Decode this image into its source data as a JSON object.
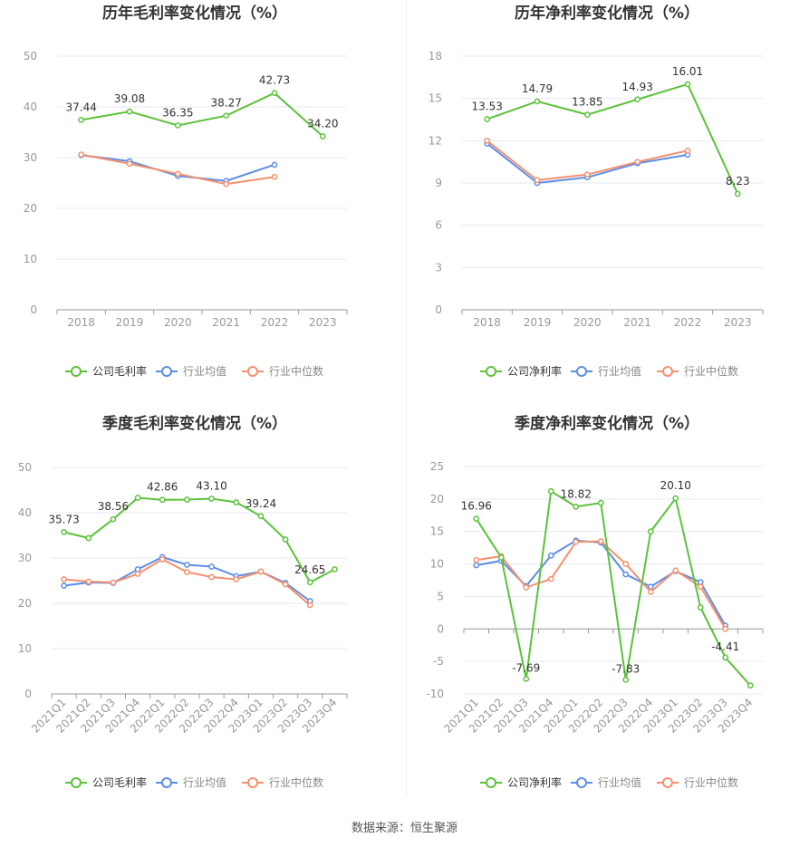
{
  "colors": {
    "company": "#5cc23a",
    "avg": "#5b8ee6",
    "median": "#f5906e",
    "grid": "#e6e9ef",
    "axis": "#999999",
    "text": "#333333"
  },
  "footer": "数据来源：恒生聚源",
  "chart_data": [
    {
      "type": "line",
      "title": "历年毛利率变化情况（%）",
      "categories": [
        "2018",
        "2019",
        "2020",
        "2021",
        "2022",
        "2023"
      ],
      "ylim": [
        0,
        50
      ],
      "yticks": [
        0,
        10,
        20,
        30,
        40,
        50
      ],
      "grid": true,
      "legend": "bottom",
      "series": [
        {
          "name": "公司毛利率",
          "values": [
            37.44,
            39.08,
            36.35,
            38.27,
            42.73,
            34.2
          ],
          "labels": [
            "37.44",
            "39.08",
            "36.35",
            "38.27",
            "42.73",
            "34.20"
          ]
        },
        {
          "name": "行业均值",
          "values": [
            30.5,
            29.3,
            26.4,
            25.4,
            28.6,
            null
          ]
        },
        {
          "name": "行业中位数",
          "values": [
            30.6,
            28.8,
            26.8,
            24.8,
            26.2,
            null
          ]
        }
      ]
    },
    {
      "type": "line",
      "title": "历年净利率变化情况（%）",
      "categories": [
        "2018",
        "2019",
        "2020",
        "2021",
        "2022",
        "2023"
      ],
      "ylim": [
        0,
        18
      ],
      "yticks": [
        0,
        3,
        6,
        9,
        12,
        15,
        18
      ],
      "grid": true,
      "legend": "bottom",
      "series": [
        {
          "name": "公司净利率",
          "values": [
            13.53,
            14.79,
            13.85,
            14.93,
            16.01,
            8.23
          ],
          "labels": [
            "13.53",
            "14.79",
            "13.85",
            "14.93",
            "16.01",
            "8.23"
          ]
        },
        {
          "name": "行业均值",
          "values": [
            11.8,
            9.0,
            9.4,
            10.4,
            11.0,
            null
          ]
        },
        {
          "name": "行业中位数",
          "values": [
            12.0,
            9.2,
            9.6,
            10.5,
            11.3,
            null
          ]
        }
      ]
    },
    {
      "type": "line",
      "title": "季度毛利率变化情况（%）",
      "categories": [
        "2021Q1",
        "2021Q2",
        "2021Q3",
        "2021Q4",
        "2022Q1",
        "2022Q2",
        "2022Q3",
        "2022Q4",
        "2023Q1",
        "2023Q2",
        "2023Q3",
        "2023Q4"
      ],
      "ylim": [
        0,
        50
      ],
      "yticks": [
        0,
        10,
        20,
        30,
        40,
        50
      ],
      "grid": true,
      "legend": "bottom",
      "series": [
        {
          "name": "公司毛利率",
          "values": [
            35.73,
            34.4,
            38.56,
            43.3,
            42.86,
            42.9,
            43.1,
            42.3,
            39.24,
            34.1,
            24.65,
            27.5
          ],
          "labels": [
            "35.73",
            "",
            "38.56",
            "",
            "42.86",
            "",
            "43.10",
            "",
            "39.24",
            "",
            "24.65",
            ""
          ]
        },
        {
          "name": "行业均值",
          "values": [
            23.9,
            24.6,
            24.5,
            27.5,
            30.2,
            28.5,
            28.1,
            26.0,
            27.0,
            24.5,
            20.5,
            null
          ]
        },
        {
          "name": "行业中位数",
          "values": [
            25.3,
            24.8,
            24.6,
            26.5,
            29.7,
            26.9,
            25.8,
            25.3,
            27.0,
            24.2,
            19.6,
            null
          ]
        }
      ]
    },
    {
      "type": "line",
      "title": "季度净利率变化情况（%）",
      "categories": [
        "2021Q1",
        "2021Q2",
        "2021Q3",
        "2021Q4",
        "2022Q1",
        "2022Q2",
        "2022Q3",
        "2022Q4",
        "2023Q1",
        "2023Q2",
        "2023Q3",
        "2023Q4"
      ],
      "ylim": [
        -10,
        25
      ],
      "yticks": [
        -10,
        -5,
        0,
        5,
        10,
        15,
        20,
        25
      ],
      "grid": true,
      "legend": "bottom",
      "series": [
        {
          "name": "公司净利率",
          "values": [
            16.96,
            11.0,
            -7.69,
            21.2,
            18.82,
            19.4,
            -7.83,
            15.0,
            20.1,
            3.3,
            -4.41,
            -8.7
          ],
          "labels": [
            "16.96",
            "",
            "-7.69",
            "",
            "18.82",
            "",
            "-7.83",
            "",
            "20.10",
            "",
            "-4.41",
            ""
          ]
        },
        {
          "name": "行业均值",
          "values": [
            9.8,
            10.5,
            6.6,
            11.3,
            13.6,
            13.3,
            8.4,
            6.5,
            8.9,
            7.2,
            0.5,
            null
          ]
        },
        {
          "name": "行业中位数",
          "values": [
            10.6,
            11.2,
            6.4,
            7.7,
            13.4,
            13.5,
            10.0,
            5.7,
            9.0,
            6.5,
            0.0,
            null
          ]
        }
      ]
    }
  ]
}
